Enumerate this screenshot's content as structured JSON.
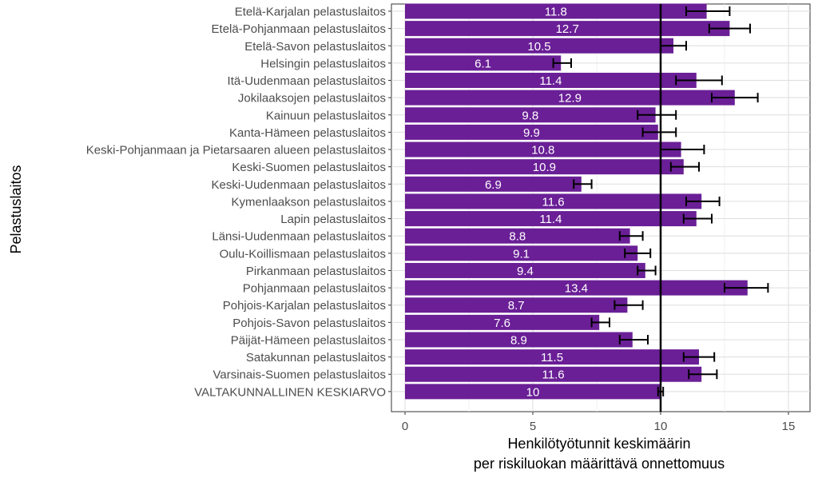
{
  "chart_data": {
    "type": "bar",
    "orientation": "horizontal",
    "xlabel": "Henkilötyötunnit keskimäärin",
    "xlabel_line2": "per riskiluokan määrittävä onnettomuus",
    "ylabel": "Pelastuslaitos",
    "xlim": [
      0,
      15.7
    ],
    "xticks": [
      0,
      5,
      10,
      15
    ],
    "reference_line": 10,
    "grid": true,
    "bar_color": "#6a1f96",
    "categories": [
      "Etelä-Karjalan pelastuslaitos",
      "Etelä-Pohjanmaan pelastuslaitos",
      "Etelä-Savon pelastuslaitos",
      "Helsingin pelastuslaitos",
      "Itä-Uudenmaan pelastuslaitos",
      "Jokilaaksojen pelastuslaitos",
      "Kainuun pelastuslaitos",
      "Kanta-Hämeen pelastuslaitos",
      "Keski-Pohjanmaan ja Pietarsaaren alueen pelastuslaitos",
      "Keski-Suomen pelastuslaitos",
      "Keski-Uudenmaan pelastuslaitos",
      "Kymenlaakson pelastuslaitos",
      "Lapin pelastuslaitos",
      "Länsi-Uudenmaan pelastuslaitos",
      "Oulu-Koillismaan pelastuslaitos",
      "Pirkanmaan pelastuslaitos",
      "Pohjanmaan pelastuslaitos",
      "Pohjois-Karjalan pelastuslaitos",
      "Pohjois-Savon pelastuslaitos",
      "Päijät-Hämeen pelastuslaitos",
      "Satakunnan pelastuslaitos",
      "Varsinais-Suomen pelastuslaitos",
      "VALTAKUNNALLINEN KESKIARVO"
    ],
    "values": [
      11.8,
      12.7,
      10.5,
      6.1,
      11.4,
      12.9,
      9.8,
      9.9,
      10.8,
      10.9,
      6.9,
      11.6,
      11.4,
      8.8,
      9.1,
      9.4,
      13.4,
      8.7,
      7.6,
      8.9,
      11.5,
      11.6,
      10
    ],
    "value_labels": [
      "11.8",
      "12.7",
      "10.5",
      "6.1",
      "11.4",
      "12.9",
      "9.8",
      "9.9",
      "10.8",
      "10.9",
      "6.9",
      "11.6",
      "11.4",
      "8.8",
      "9.1",
      "9.4",
      "13.4",
      "8.7",
      "7.6",
      "8.9",
      "11.5",
      "11.6",
      "10"
    ],
    "error_low": [
      11.0,
      11.9,
      10.0,
      5.8,
      10.6,
      12.0,
      9.1,
      9.3,
      10.0,
      10.4,
      6.6,
      11.0,
      10.9,
      8.4,
      8.6,
      9.1,
      12.5,
      8.2,
      7.3,
      8.4,
      10.9,
      11.1,
      9.9
    ],
    "error_high": [
      12.7,
      13.5,
      11.0,
      6.5,
      12.4,
      13.8,
      10.6,
      10.6,
      11.7,
      11.5,
      7.3,
      12.3,
      12.0,
      9.3,
      9.6,
      9.8,
      14.2,
      9.3,
      8.0,
      9.5,
      12.1,
      12.2,
      10.1
    ]
  }
}
